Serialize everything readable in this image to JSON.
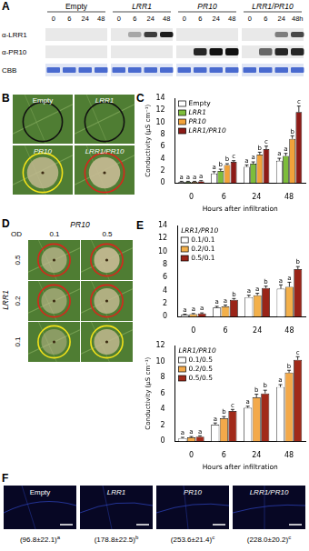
{
  "panels": {
    "A": {
      "letter": "A",
      "groups": [
        "Empty",
        "LRR1",
        "PR10",
        "LRR1/PR10"
      ],
      "time_labels": [
        [
          "0",
          "6",
          "24",
          "48"
        ],
        [
          "0",
          "6",
          "24",
          "48"
        ],
        [
          "0",
          "6",
          "24",
          "48"
        ],
        [
          "0",
          "6",
          "24",
          "48h"
        ]
      ],
      "rows": [
        "α-LRR1",
        "α-PR10",
        "CBB"
      ]
    },
    "B": {
      "letter": "B",
      "images": [
        "Empty",
        "LRR1",
        "PR10",
        "LRR1/PR10"
      ]
    },
    "C": {
      "letter": "C"
    },
    "D": {
      "letter": "D",
      "title": "PR10",
      "od_label": "OD",
      "columns": [
        "0.1",
        "0.5"
      ],
      "row_title": "LRR1",
      "rows": [
        "0.5",
        "0.2",
        "0.1"
      ]
    },
    "E": {
      "letter": "E"
    },
    "F": {
      "letter": "F",
      "images": [
        {
          "label": "Empty",
          "caption": "(96.8±22.1)",
          "letter": "a"
        },
        {
          "label": "LRR1",
          "caption": "(178.8±22.5)",
          "letter": "b"
        },
        {
          "label": "PR10",
          "caption": "(253.6±21.4)",
          "letter": "c"
        },
        {
          "label": "LRR1/PR10",
          "caption": "(228.0±20.2)",
          "letter": "c"
        }
      ]
    }
  },
  "chart_data": [
    {
      "type": "bar",
      "ylabel": "Conductivity (μS cm⁻¹)",
      "xlabel": "Hours after infiltration",
      "categories": [
        "0",
        "6",
        "24",
        "48"
      ],
      "ylim": [
        0,
        14
      ],
      "yticks": [
        0,
        2,
        4,
        6,
        8,
        10,
        12,
        14
      ],
      "grid": false,
      "legend": "upper left",
      "series": [
        {
          "name": "Empty",
          "color": "#ffffff",
          "values": [
            0.2,
            1.6,
            2.7,
            3.7
          ],
          "errors": [
            0.1,
            0.3,
            0.3,
            0.4
          ],
          "letters": [
            "a",
            "a",
            "a",
            "a"
          ]
        },
        {
          "name": "LRR1",
          "color": "#7dbd3b",
          "values": [
            0.2,
            2.0,
            3.2,
            4.5
          ],
          "errors": [
            0.1,
            0.3,
            0.3,
            0.4
          ],
          "letters": [
            "a",
            "b",
            "a",
            "a"
          ]
        },
        {
          "name": "PR10",
          "color": "#f2a23a",
          "values": [
            0.2,
            3.0,
            4.7,
            7.3
          ],
          "errors": [
            0.1,
            0.2,
            0.4,
            0.5
          ],
          "letters": [
            "a",
            "b",
            "b",
            "b"
          ]
        },
        {
          "name": "LRR1/PR10",
          "color": "#8c1b17",
          "values": [
            0.3,
            3.5,
            5.6,
            11.7
          ],
          "errors": [
            0.1,
            0.2,
            0.5,
            1.0
          ],
          "letters": [
            "a",
            "c",
            "c",
            "c"
          ]
        }
      ]
    },
    {
      "type": "bar",
      "categories": [
        "0",
        "6",
        "24",
        "48"
      ],
      "ylim": [
        0,
        14
      ],
      "yticks": [
        0,
        2,
        4,
        6,
        8,
        10,
        12,
        14
      ],
      "grid": false,
      "legend": "upper left",
      "legend_title": "LRR1/PR10",
      "series": [
        {
          "name": "0.1/0.1",
          "color": "#ffffff",
          "values": [
            0.3,
            1.4,
            3.0,
            4.3
          ],
          "errors": [
            0.1,
            0.2,
            0.3,
            0.6
          ],
          "letters": [
            "a",
            "a",
            "a",
            "a"
          ]
        },
        {
          "name": "0.2/0.1",
          "color": "#f3b04a",
          "values": [
            0.4,
            1.6,
            3.3,
            4.6
          ],
          "errors": [
            0.1,
            0.2,
            0.3,
            0.7
          ],
          "letters": [
            "a",
            "a",
            "a",
            "a"
          ]
        },
        {
          "name": "0.5/0.1",
          "color": "#9a2418",
          "values": [
            0.5,
            2.6,
            4.4,
            7.3
          ],
          "errors": [
            0.1,
            0.2,
            0.3,
            0.4
          ],
          "letters": [
            "a",
            "b",
            "b",
            "b"
          ]
        }
      ]
    },
    {
      "type": "bar",
      "ylabel": "Conductivity (μS cm⁻¹)",
      "xlabel": "Hours after infiltration",
      "categories": [
        "0",
        "6",
        "24",
        "48"
      ],
      "ylim": [
        0,
        12
      ],
      "yticks": [
        0,
        2,
        4,
        6,
        8,
        10,
        12
      ],
      "grid": false,
      "legend": "upper left",
      "legend_title": "LRR1/PR10",
      "series": [
        {
          "name": "0.1/0.5",
          "color": "#ffffff",
          "values": [
            0.4,
            2.1,
            4.2,
            6.8
          ],
          "errors": [
            0.1,
            0.2,
            0.2,
            0.3
          ],
          "letters": [
            "a",
            "a",
            "a",
            "a"
          ]
        },
        {
          "name": "0.2/0.5",
          "color": "#f3a94a",
          "values": [
            0.5,
            2.9,
            5.5,
            8.6
          ],
          "errors": [
            0.1,
            0.2,
            0.4,
            0.3
          ],
          "letters": [
            "a",
            "b",
            "b",
            "b"
          ]
        },
        {
          "name": "0.5/0.5",
          "color": "#a12a1a",
          "values": [
            0.6,
            3.8,
            6.0,
            10.2
          ],
          "errors": [
            0.1,
            0.2,
            0.4,
            0.4
          ],
          "letters": [
            "a",
            "c",
            "b",
            "c"
          ]
        }
      ]
    }
  ]
}
